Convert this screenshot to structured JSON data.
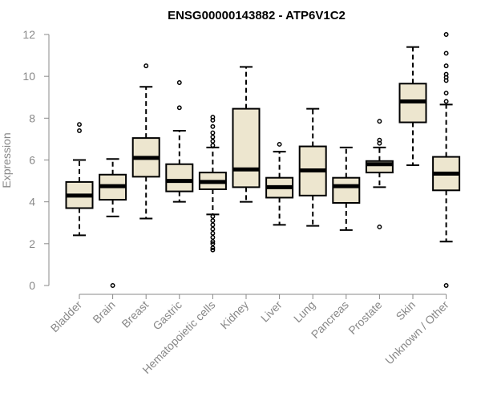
{
  "chart_data": {
    "type": "box",
    "title": "ENSG00000143882 - ATP6V1C2",
    "xlabel": "",
    "ylabel": "Expression",
    "ylim": [
      0,
      12
    ],
    "yticks": [
      0,
      2,
      4,
      6,
      8,
      10,
      12
    ],
    "grid": false,
    "colors": {
      "box_fill": "#ede6cf",
      "box_stroke": "#000000",
      "axis": "#888888"
    },
    "categories": [
      "Bladder",
      "Brain",
      "Breast",
      "Gastric",
      "Hematopoietic cells",
      "Kidney",
      "Liver",
      "Lung",
      "Pancreas",
      "Prostate",
      "Skin",
      "Unknown / Other"
    ],
    "boxes": [
      {
        "category": "Bladder",
        "whisker_low": 2.4,
        "q1": 3.7,
        "median": 4.3,
        "q3": 4.95,
        "whisker_high": 6.0,
        "outliers": [
          7.4,
          7.7
        ]
      },
      {
        "category": "Brain",
        "whisker_low": 3.3,
        "q1": 4.1,
        "median": 4.75,
        "q3": 5.3,
        "whisker_high": 6.05,
        "outliers": [
          0.0
        ]
      },
      {
        "category": "Breast",
        "whisker_low": 3.2,
        "q1": 5.2,
        "median": 6.1,
        "q3": 7.05,
        "whisker_high": 9.5,
        "outliers": [
          10.5
        ]
      },
      {
        "category": "Gastric",
        "whisker_low": 4.0,
        "q1": 4.5,
        "median": 5.0,
        "q3": 5.8,
        "whisker_high": 7.4,
        "outliers": [
          8.5,
          9.7
        ]
      },
      {
        "category": "Hematopoietic cells",
        "whisker_low": 3.4,
        "q1": 4.6,
        "median": 4.95,
        "q3": 5.4,
        "whisker_high": 6.6,
        "outliers": [
          1.7,
          1.8,
          2.0,
          2.1,
          2.3,
          2.5,
          2.7,
          2.9,
          3.1,
          3.3,
          6.7,
          6.9,
          7.1,
          7.3,
          7.6,
          7.9,
          8.05
        ]
      },
      {
        "category": "Kidney",
        "whisker_low": 4.0,
        "q1": 4.7,
        "median": 5.55,
        "q3": 8.45,
        "whisker_high": 10.45,
        "outliers": []
      },
      {
        "category": "Liver",
        "whisker_low": 2.9,
        "q1": 4.2,
        "median": 4.7,
        "q3": 5.15,
        "whisker_high": 6.4,
        "outliers": [
          6.75
        ]
      },
      {
        "category": "Lung",
        "whisker_low": 2.85,
        "q1": 4.3,
        "median": 5.5,
        "q3": 6.65,
        "whisker_high": 8.45,
        "outliers": []
      },
      {
        "category": "Pancreas",
        "whisker_low": 2.65,
        "q1": 3.95,
        "median": 4.75,
        "q3": 5.15,
        "whisker_high": 6.6,
        "outliers": []
      },
      {
        "category": "Prostate",
        "whisker_low": 4.7,
        "q1": 5.4,
        "median": 5.8,
        "q3": 5.95,
        "whisker_high": 6.6,
        "outliers": [
          2.8,
          6.8,
          6.95,
          7.85
        ]
      },
      {
        "category": "Skin",
        "whisker_low": 5.75,
        "q1": 7.8,
        "median": 8.8,
        "q3": 9.65,
        "whisker_high": 11.4,
        "outliers": []
      },
      {
        "category": "Unknown / Other",
        "whisker_low": 2.1,
        "q1": 4.55,
        "median": 5.35,
        "q3": 6.15,
        "whisker_high": 8.65,
        "outliers": [
          0.0,
          8.8,
          9.2,
          9.8,
          9.95,
          10.1,
          10.5,
          11.1,
          12.0
        ]
      }
    ]
  }
}
